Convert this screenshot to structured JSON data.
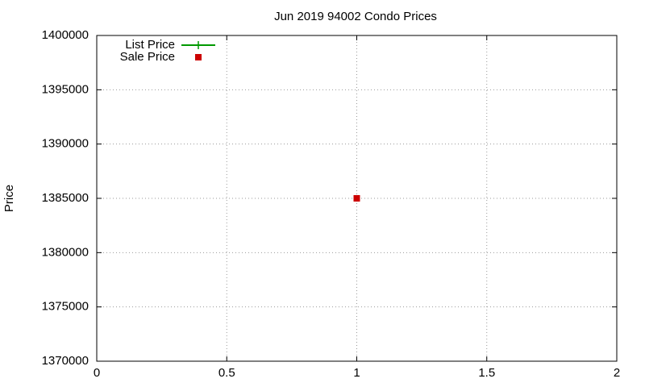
{
  "chart_data": {
    "type": "scatter",
    "title": "Jun 2019 94002 Condo Prices",
    "y_label": "Price",
    "x": [
      1
    ],
    "series": [
      {
        "name": "List Price",
        "color": "#009900",
        "marker": "plus",
        "line": true,
        "values": [
          null
        ]
      },
      {
        "name": "Sale Price",
        "color": "#cc0000",
        "marker": "square",
        "line": false,
        "values": [
          1385000
        ]
      }
    ],
    "xlim": [
      0,
      2
    ],
    "xticks": [
      0,
      0.5,
      1,
      1.5,
      2
    ],
    "ylim": [
      1370000,
      1400000
    ],
    "yticks": [
      1370000,
      1375000,
      1380000,
      1385000,
      1390000,
      1395000,
      1400000
    ],
    "grid": true,
    "legend": "top-left"
  }
}
